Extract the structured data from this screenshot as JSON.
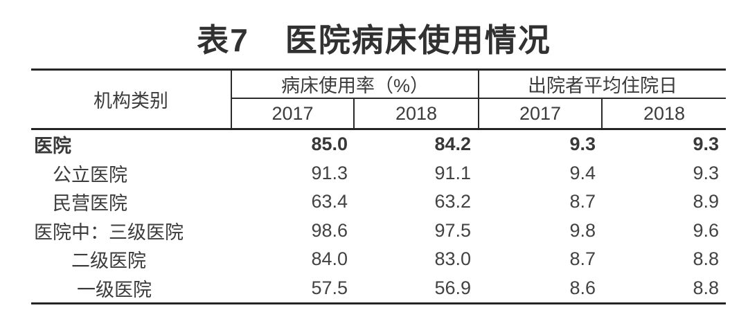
{
  "title": {
    "prefix": "表7",
    "text": "医院病床使用情况"
  },
  "table": {
    "col1_header": "机构类别",
    "groups": [
      {
        "label": "病床使用率（%）",
        "years": [
          "2017",
          "2018"
        ]
      },
      {
        "label": "出院者平均住院日",
        "years": [
          "2017",
          "2018"
        ]
      }
    ],
    "rows": [
      {
        "label": "医院",
        "values": [
          "85.0",
          "84.2",
          "9.3",
          "9.3"
        ]
      },
      {
        "label": "公立医院",
        "values": [
          "91.3",
          "91.1",
          "9.4",
          "9.3"
        ]
      },
      {
        "label": "民营医院",
        "values": [
          "63.4",
          "63.2",
          "8.7",
          "8.9"
        ]
      },
      {
        "label": "医院中：三级医院",
        "values": [
          "98.6",
          "97.5",
          "9.8",
          "9.6"
        ]
      },
      {
        "label": "二级医院",
        "values": [
          "84.0",
          "83.0",
          "8.7",
          "8.8"
        ]
      },
      {
        "label": "一级医院",
        "values": [
          "57.5",
          "56.9",
          "8.6",
          "8.8"
        ]
      }
    ]
  },
  "colors": {
    "background": "#ffffff",
    "rule_thick": "#242424",
    "rule_thin": "#2a2a2a",
    "text": "#3b3b3b",
    "title_text": "#313131"
  }
}
